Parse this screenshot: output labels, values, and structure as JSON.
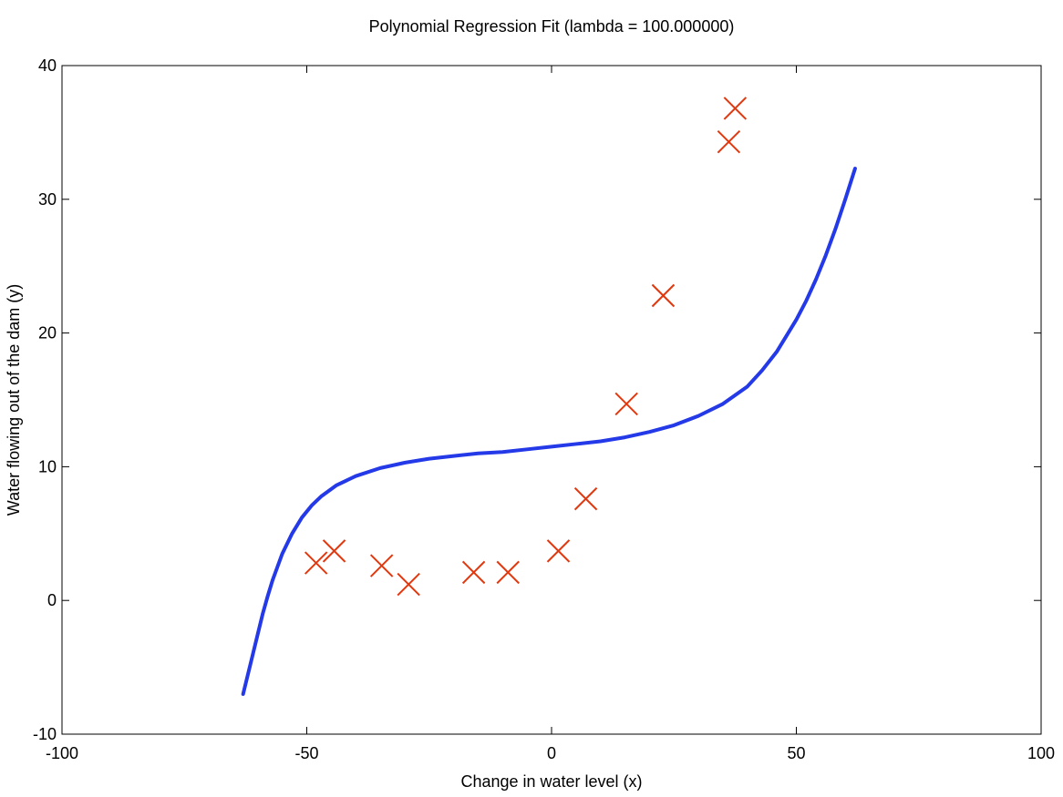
{
  "chart_data": {
    "type": "scatter",
    "title": "Polynomial Regression Fit (lambda = 100.000000)",
    "xlabel": "Change in water level (x)",
    "ylabel": "Water flowing out of the dam (y)",
    "xlim": [
      -100,
      100
    ],
    "ylim": [
      -10,
      40
    ],
    "xticks": [
      -100,
      -50,
      0,
      50,
      100
    ],
    "yticks": [
      -10,
      0,
      10,
      20,
      30,
      40
    ],
    "xtick_labels": [
      "-100",
      "-50",
      "0",
      "50",
      "100"
    ],
    "ytick_labels": [
      "-10",
      "0",
      "10",
      "20",
      "30",
      "40"
    ],
    "grid": false,
    "series": [
      {
        "kind": "scatter",
        "marker": "x",
        "color": "#e0380f",
        "points": [
          {
            "x": -48.1,
            "y": 2.8
          },
          {
            "x": -44.4,
            "y": 3.7
          },
          {
            "x": -34.7,
            "y": 2.6
          },
          {
            "x": -29.2,
            "y": 1.2
          },
          {
            "x": -15.9,
            "y": 2.1
          },
          {
            "x": -8.9,
            "y": 2.1
          },
          {
            "x": 1.4,
            "y": 3.7
          },
          {
            "x": 7.0,
            "y": 7.6
          },
          {
            "x": 15.3,
            "y": 14.7
          },
          {
            "x": 22.8,
            "y": 22.8
          },
          {
            "x": 36.2,
            "y": 34.3
          },
          {
            "x": 37.5,
            "y": 36.8
          }
        ]
      },
      {
        "kind": "line",
        "color": "#2439e8",
        "points": [
          {
            "x": -63.0,
            "y": -7.0
          },
          {
            "x": -62.0,
            "y": -5.5
          },
          {
            "x": -61.0,
            "y": -4.0
          },
          {
            "x": -60.0,
            "y": -2.5
          },
          {
            "x": -59.0,
            "y": -1.0
          },
          {
            "x": -58.0,
            "y": 0.3
          },
          {
            "x": -57.0,
            "y": 1.5
          },
          {
            "x": -56.0,
            "y": 2.5
          },
          {
            "x": -55.0,
            "y": 3.5
          },
          {
            "x": -53.0,
            "y": 5.0
          },
          {
            "x": -51.0,
            "y": 6.2
          },
          {
            "x": -49.0,
            "y": 7.1
          },
          {
            "x": -47.0,
            "y": 7.8
          },
          {
            "x": -44.0,
            "y": 8.6
          },
          {
            "x": -40.0,
            "y": 9.3
          },
          {
            "x": -35.0,
            "y": 9.9
          },
          {
            "x": -30.0,
            "y": 10.3
          },
          {
            "x": -25.0,
            "y": 10.6
          },
          {
            "x": -20.0,
            "y": 10.8
          },
          {
            "x": -15.0,
            "y": 11.0
          },
          {
            "x": -10.0,
            "y": 11.1
          },
          {
            "x": -5.0,
            "y": 11.3
          },
          {
            "x": 0.0,
            "y": 11.5
          },
          {
            "x": 5.0,
            "y": 11.7
          },
          {
            "x": 10.0,
            "y": 11.9
          },
          {
            "x": 15.0,
            "y": 12.2
          },
          {
            "x": 20.0,
            "y": 12.6
          },
          {
            "x": 25.0,
            "y": 13.1
          },
          {
            "x": 30.0,
            "y": 13.8
          },
          {
            "x": 35.0,
            "y": 14.7
          },
          {
            "x": 40.0,
            "y": 16.0
          },
          {
            "x": 43.0,
            "y": 17.2
          },
          {
            "x": 46.0,
            "y": 18.6
          },
          {
            "x": 48.0,
            "y": 19.8
          },
          {
            "x": 50.0,
            "y": 21.0
          },
          {
            "x": 52.0,
            "y": 22.4
          },
          {
            "x": 54.0,
            "y": 24.0
          },
          {
            "x": 56.0,
            "y": 25.8
          },
          {
            "x": 58.0,
            "y": 27.8
          },
          {
            "x": 60.0,
            "y": 30.0
          },
          {
            "x": 62.0,
            "y": 32.3
          }
        ]
      }
    ]
  }
}
